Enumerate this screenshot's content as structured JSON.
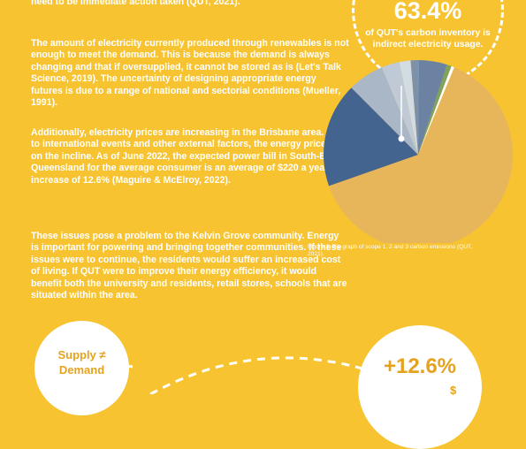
{
  "paragraphs": [
    "need to be immediate action taken (QUT, 2021).",
    "The amount of electricity currently produced through renewables is not enough to meet the demand. This is because the demand is always changing and that if oversupplied, it cannot be stored as is (Let's Talk Science, 2019). The uncertainty of designing appropriate energy futures is due to a range of national and sectorial conditions (Mueller, 1991).",
    "Additionally, electricity prices are increasing in the Brisbane area. Due to international events and other external factors, the energy prices are on the incline. As of June 2022, the expected power bill in South-East Queensland for the average consumer is an average of $220 a year, an increase of 12.6% (Maguire & McElroy, 2022).",
    "These issues pose a problem to the Kelvin Grove community. Energy is important for powering and bringing together communities. If these issues were to continue, the residents would suffer an increased cost of living. If QUT were to improve their energy efficiency, it would benefit both the university and residents, retail stores, schools that are situated within the area."
  ],
  "top_stat": {
    "value": "63.4%",
    "text": "of QUT's carbon inventory is indirect electricity usage."
  },
  "figure_caption": "Figure 3: Pie graph of scope 1, 2 and 3 carbon emissions (QUT, 2021).",
  "supply_badge": "Supply ≠ Demand",
  "increase_badge": {
    "value": "+12.6%",
    "symbol": "$"
  },
  "chart_data": {
    "type": "pie",
    "values": [
      63.4,
      17.9,
      6.2,
      3.1,
      1.9,
      1.4,
      4.8,
      0.8,
      0.5
    ],
    "colors": [
      "#e8b65a",
      "#42648f",
      "#aab7c7",
      "#c0cad6",
      "#d3dbe3",
      "#7d91a9",
      "#6b82a3",
      "#7fa35a",
      "#ffffff"
    ]
  }
}
